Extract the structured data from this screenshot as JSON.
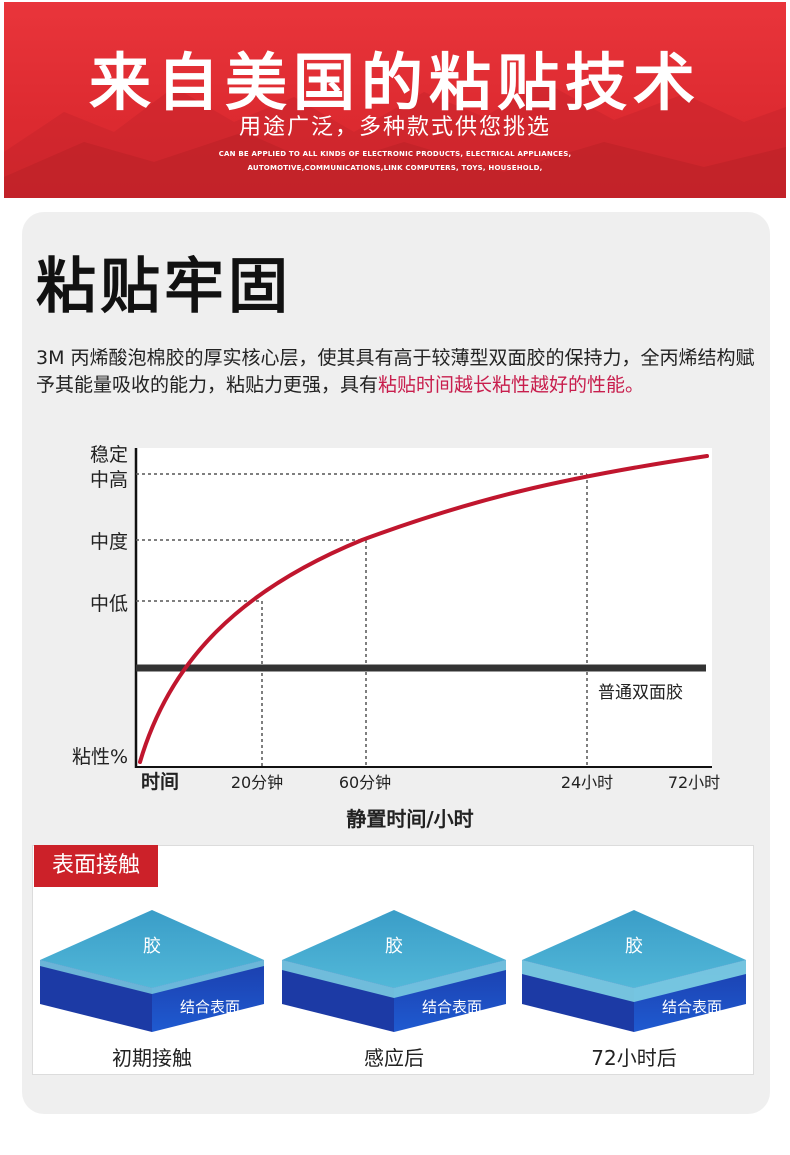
{
  "banner": {
    "title": "来自美国的粘贴技术",
    "subtitle": "用途广泛，多种款式供您挑选",
    "english_line1": "CAN BE APPLIED TO ALL KINDS OF ELECTRONIC PRODUCTS, ELECTRICAL APPLIANCES,",
    "english_line2": "AUTOMOTIVE,COMMUNICATIONS,LINK COMPUTERS, TOYS, HOUSEHOLD,"
  },
  "section": {
    "title": "粘贴牢固",
    "desc_part1": "3M 丙烯酸泡棉胶的厚实核心层，使其具有高于较薄型双面胶的保持力，全丙烯结构赋予其能量吸收的能力，粘贴力更强，具有",
    "desc_highlight": "粘贴时间越长粘性越好的性能。"
  },
  "chart_data": {
    "type": "line",
    "y_tick_labels": [
      "稳定",
      "中高",
      "中度",
      "中低",
      "粘性%"
    ],
    "x_tick_labels": [
      "时间",
      "20分钟",
      "60分钟",
      "24小时",
      "72小时"
    ],
    "xlabel": "静置时间/小时",
    "series": [
      {
        "name": "",
        "color": "#c0162e",
        "x": [
          "时间",
          "20分钟",
          "60分钟",
          "24小时",
          "72小时"
        ],
        "y": [
          "粘性%",
          "中低",
          "中度",
          "中高",
          "稳定"
        ]
      },
      {
        "name": "普通双面胶",
        "color": "#333333"
      }
    ]
  },
  "surface": {
    "label": "表面接触",
    "panels": [
      {
        "glue": "胶",
        "bond": "结合表面",
        "caption": "初期接触"
      },
      {
        "glue": "胶",
        "bond": "结合表面",
        "caption": "感应后"
      },
      {
        "glue": "胶",
        "bond": "结合表面",
        "caption": "72小时后"
      }
    ]
  },
  "colors": {
    "banner_red": "#e23238",
    "accent_red": "#cc2129",
    "highlight": "#c81e4d"
  }
}
